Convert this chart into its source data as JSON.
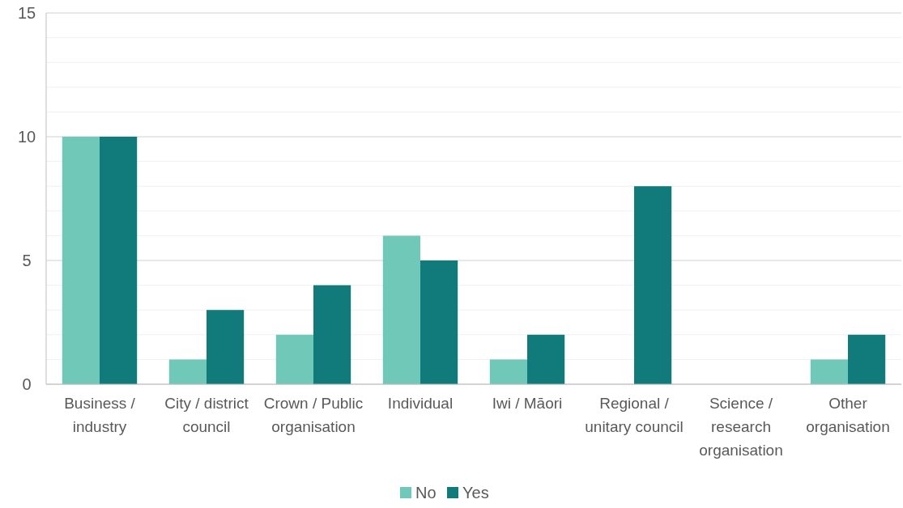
{
  "chart_data": {
    "type": "bar",
    "categories": [
      "Business / industry",
      "City / district council",
      "Crown / Public organisation",
      "Individual",
      "Iwi / Māori",
      "Regional / unitary council",
      "Science / research organisation",
      "Other organisation"
    ],
    "series": [
      {
        "name": "No",
        "color": "#70c8b8",
        "values": [
          10,
          1,
          2,
          6,
          1,
          0,
          0,
          1
        ]
      },
      {
        "name": "Yes",
        "color": "#117b7b",
        "values": [
          10,
          3,
          4,
          5,
          2,
          8,
          0,
          2
        ]
      }
    ],
    "ylim": [
      0,
      15
    ],
    "yticks": [
      0,
      {
        "value": 1,
        "label": null
      },
      {
        "value": 2,
        "label": null
      },
      {
        "value": 3,
        "label": null
      },
      {
        "value": 4,
        "label": null
      },
      5,
      {
        "value": 6,
        "label": null
      },
      {
        "value": 7,
        "label": null
      },
      {
        "value": 8,
        "label": null
      },
      {
        "value": 9,
        "label": null
      },
      10,
      {
        "value": 11,
        "label": null
      },
      {
        "value": 12,
        "label": null
      },
      {
        "value": 13,
        "label": null
      },
      {
        "value": 14,
        "label": null
      },
      15
    ],
    "grid": "y",
    "legend": "bottom"
  }
}
